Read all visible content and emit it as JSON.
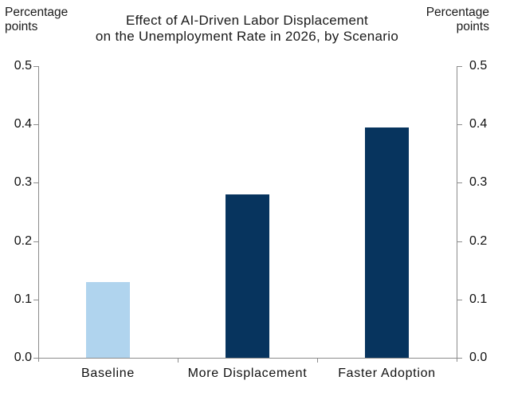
{
  "chart_data": {
    "type": "bar",
    "title": "Effect of AI-Driven Labor Displacement on the Unemployment Rate in 2026, by Scenario",
    "title_lines": [
      "Effect of AI-Driven Labor Displacement",
      "on the Unemployment Rate in 2026, by Scenario"
    ],
    "categories": [
      "Baseline",
      "More Displacement",
      "Faster Adoption"
    ],
    "values": [
      0.13,
      0.28,
      0.395
    ],
    "bar_colors": [
      "#b0d4ee",
      "#07345e",
      "#07345e"
    ],
    "ylabel_left": "Percentage points",
    "ylabel_right": "Percentage points",
    "unit_label_lines": [
      "Percentage",
      "points"
    ],
    "ylim": [
      0.0,
      0.5
    ],
    "yticks": [
      0.0,
      0.1,
      0.2,
      0.3,
      0.4,
      0.5
    ],
    "ytick_labels": [
      "0.0",
      "0.1",
      "0.2",
      "0.3",
      "0.4",
      "0.5"
    ],
    "grid": false,
    "legend": "none",
    "axes": "dual-y-mirrored"
  },
  "style": {
    "axis_color": "#8c8c8c",
    "text_color": "#111111",
    "background_color": "#ffffff"
  }
}
